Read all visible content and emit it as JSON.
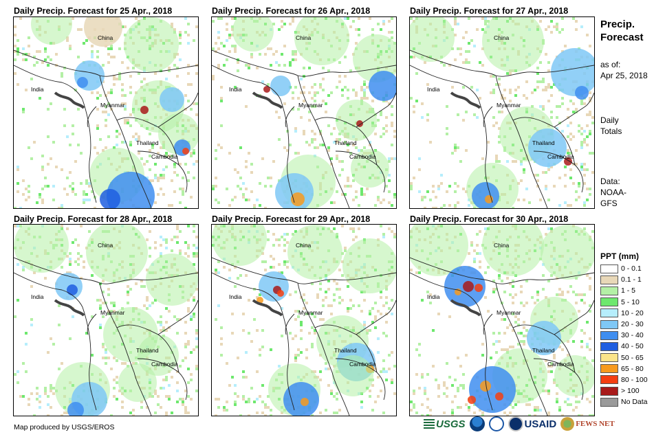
{
  "panels": [
    {
      "title": "Daily Precip. Forecast for 25 Apr., 2018"
    },
    {
      "title": "Daily Precip. Forecast for 26 Apr., 2018"
    },
    {
      "title": "Daily Precip. Forecast for 27 Apr., 2018"
    },
    {
      "title": "Daily Precip. Forecast for 28 Apr., 2018"
    },
    {
      "title": "Daily Precip. Forecast for 29 Apr., 2018"
    },
    {
      "title": "Daily Precip. Forecast for 30 Apr., 2018"
    }
  ],
  "map_labels": {
    "china": "China",
    "india": "India",
    "myanmar": "Myanmar",
    "thailand": "Thailand",
    "cambodia": "Cambodia"
  },
  "sidebar": {
    "title_line1": "Precip.",
    "title_line2": "Forecast",
    "asof_line1": "as of:",
    "asof_line2": "Apr 25, 2018",
    "daily_line1": "Daily",
    "daily_line2": "Totals",
    "data_line1": "Data:",
    "data_line2": "NOAA-",
    "data_line3": "GFS"
  },
  "legend": {
    "title": "PPT (mm)",
    "items": [
      {
        "label": "0 - 0.1",
        "color": "#ffffff"
      },
      {
        "label": "0.1 - 1",
        "color": "#e8d8b8"
      },
      {
        "label": "1 - 5",
        "color": "#b4f0a6"
      },
      {
        "label": "5 - 10",
        "color": "#6ee86e"
      },
      {
        "label": "10 - 20",
        "color": "#b6eefc"
      },
      {
        "label": "20 - 30",
        "color": "#7fc8f6"
      },
      {
        "label": "30 - 40",
        "color": "#3f8ef0"
      },
      {
        "label": "40 - 50",
        "color": "#1f5ee0"
      },
      {
        "label": "50 - 65",
        "color": "#fbe48a"
      },
      {
        "label": "65 - 80",
        "color": "#f79a1e"
      },
      {
        "label": "80 - 100",
        "color": "#f43f12"
      },
      {
        "label": "> 100",
        "color": "#a81a1a"
      },
      {
        "label": "No Data",
        "color": "#9a9a9a"
      }
    ]
  },
  "footer": {
    "credit": "Map produced by USGS/EROS",
    "logo_usgs": "USGS",
    "logo_usaid": "USAID",
    "logo_fews": "FEWS NET"
  }
}
